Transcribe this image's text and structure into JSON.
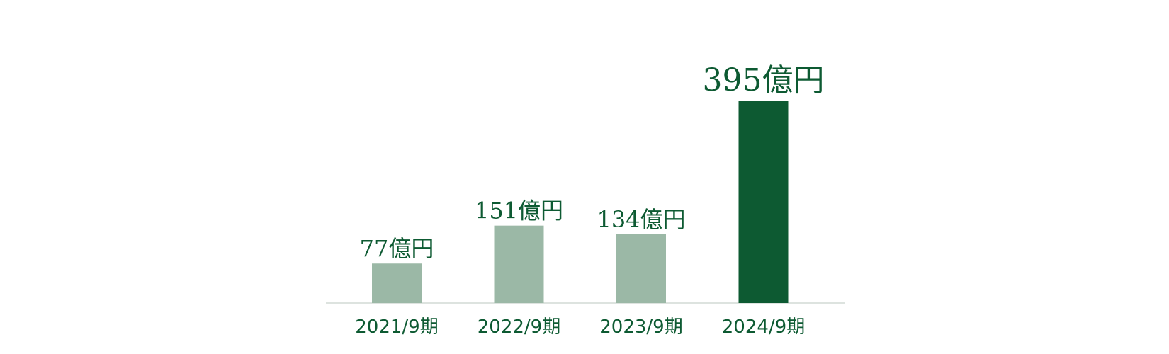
{
  "chart_data": {
    "type": "bar",
    "categories": [
      "2021/9期",
      "2022/9期",
      "2023/9期",
      "2024/9期"
    ],
    "values": [
      77,
      151,
      134,
      395
    ],
    "value_labels": [
      "77億円",
      "151億円",
      "134億円",
      "395億円"
    ],
    "ylim": [
      0,
      395
    ],
    "grid": false,
    "legend": "none",
    "colors": {
      "bar": "#9bb8a6",
      "highlight_bar": "#0d5a32",
      "text": "#0d5a32",
      "axis": "#dde3df"
    },
    "highlight_index": 3
  }
}
